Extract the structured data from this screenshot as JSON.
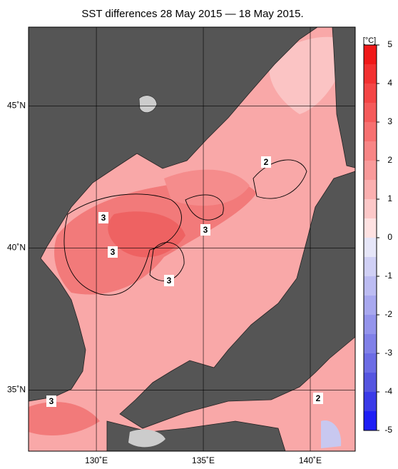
{
  "title": "SST differences 28 May 2015 — 18 May 2015.",
  "map": {
    "xlim": [
      126.83,
      142.1
    ],
    "ylim": [
      32.85,
      47.77
    ],
    "xticks": [
      {
        "value": 130,
        "label": "130˚E"
      },
      {
        "value": 135,
        "label": "135˚E"
      },
      {
        "value": 140,
        "label": "140˚E"
      }
    ],
    "yticks": [
      {
        "value": 45,
        "label": "45˚N"
      },
      {
        "value": 40,
        "label": "40˚N"
      },
      {
        "value": 35,
        "label": "35˚N"
      }
    ],
    "contour_labels": [
      3,
      3,
      3,
      3,
      2,
      3,
      2
    ]
  },
  "colorbar": {
    "unit": "[°C]",
    "lim": [
      -5,
      5
    ],
    "ticks": [
      5,
      4,
      3,
      2,
      1,
      0,
      -1,
      -2,
      -3,
      -4,
      -5
    ],
    "colors": [
      "#f01818",
      "#f23030",
      "#f44545",
      "#f55a5a",
      "#f77070",
      "#f88585",
      "#f99a9a",
      "#fbb0b0",
      "#fcc8c8",
      "#fee2e2",
      "#e6e6f8",
      "#d0d0f5",
      "#bcbcf2",
      "#a8a8ef",
      "#9494ec",
      "#8080e8",
      "#6c6ce5",
      "#5555e0",
      "#3a3ae8",
      "#1e1ef5"
    ]
  }
}
